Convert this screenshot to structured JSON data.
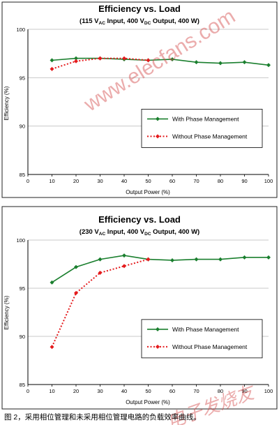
{
  "colors": {
    "with": "#1a7f2e",
    "without": "#e41a1c",
    "grid": "#c8c8c8",
    "frame": "#222222",
    "watermark": "#d24848"
  },
  "chart_data": [
    {
      "type": "line",
      "title": "Efficiency vs. Load",
      "subtitle": {
        "p1": "(115 V",
        "s1": "AC",
        "p2": " Input, 400 V",
        "s2": "DC",
        "p3": " Output, 400 W)"
      },
      "xlabel": "Output Power (%)",
      "ylabel": "Efficiency (%)",
      "xlim": [
        0,
        100
      ],
      "ylim": [
        85,
        100
      ],
      "xticks": [
        0,
        10,
        20,
        30,
        40,
        50,
        60,
        70,
        80,
        90,
        100
      ],
      "yticks": [
        85,
        90,
        95,
        100
      ],
      "grid": "horizontal",
      "legend_position": "center-right",
      "series": [
        {
          "name": "With Phase Management",
          "style": "solid",
          "marker": "diamond",
          "x": [
            10,
            20,
            30,
            40,
            50,
            60,
            70,
            80,
            90,
            100
          ],
          "y": [
            96.8,
            97.0,
            97.0,
            96.9,
            96.8,
            96.9,
            96.6,
            96.5,
            96.6,
            96.3
          ]
        },
        {
          "name": "Without Phase Management",
          "style": "dotted",
          "marker": "diamond",
          "x": [
            10,
            20,
            30,
            40,
            50
          ],
          "y": [
            95.9,
            96.7,
            97.0,
            97.0,
            96.8
          ]
        }
      ]
    },
    {
      "type": "line",
      "title": "Efficiency vs. Load",
      "subtitle": {
        "p1": "(230 V",
        "s1": "AC",
        "p2": " Input, 400 V",
        "s2": "DC",
        "p3": " Output, 400 W)"
      },
      "xlabel": "Output Power (%)",
      "ylabel": "Efficiency (%)",
      "xlim": [
        0,
        100
      ],
      "ylim": [
        85,
        100
      ],
      "xticks": [
        0,
        10,
        20,
        30,
        40,
        50,
        60,
        70,
        80,
        90,
        100
      ],
      "yticks": [
        85,
        90,
        95,
        100
      ],
      "grid": "horizontal",
      "legend_position": "center-right",
      "series": [
        {
          "name": "With Phase Management",
          "style": "solid",
          "marker": "diamond",
          "x": [
            10,
            20,
            30,
            40,
            50,
            60,
            70,
            80,
            90,
            100
          ],
          "y": [
            95.6,
            97.2,
            98.0,
            98.4,
            98.0,
            97.9,
            98.0,
            98.0,
            98.2,
            98.2
          ]
        },
        {
          "name": "Without Phase Management",
          "style": "dotted",
          "marker": "diamond",
          "x": [
            10,
            20,
            30,
            40,
            50
          ],
          "y": [
            88.9,
            94.5,
            96.6,
            97.3,
            98.0
          ]
        }
      ]
    }
  ],
  "caption": "图 2，采用相位管理和未采用相位管理电路的负载效率曲线。",
  "watermarks": [
    "www.elecfans.com",
    "电子发烧友"
  ]
}
